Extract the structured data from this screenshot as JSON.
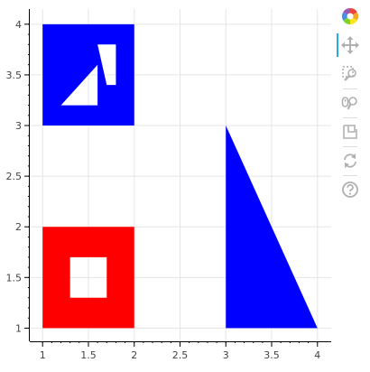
{
  "chart_data": {
    "type": "patches",
    "xlim": [
      0.86,
      4.15
    ],
    "ylim": [
      0.87,
      4.15
    ],
    "x_ticks": [
      "1",
      "1.5",
      "2",
      "2.5",
      "3",
      "3.5",
      "4"
    ],
    "y_ticks": [
      "1",
      "1.5",
      "2",
      "2.5",
      "3",
      "3.5",
      "4"
    ],
    "grid": true,
    "shapes": [
      {
        "name": "blue square with holes",
        "color": "#0000ff",
        "outer": [
          [
            1,
            3
          ],
          [
            2,
            3
          ],
          [
            2,
            4
          ],
          [
            1,
            4
          ]
        ],
        "holes": [
          [
            [
              1.2,
              3.2
            ],
            [
              1.6,
              3.2
            ],
            [
              1.6,
              3.6
            ]
          ],
          [
            [
              1.7,
              3.4
            ],
            [
              1.8,
              3.4
            ],
            [
              1.8,
              3.8
            ],
            [
              1.6,
              3.8
            ]
          ]
        ]
      },
      {
        "name": "red square with hole",
        "color": "#ff0000",
        "outer": [
          [
            1,
            1
          ],
          [
            2,
            1
          ],
          [
            2,
            2
          ],
          [
            1,
            2
          ]
        ],
        "holes": [
          [
            [
              1.3,
              1.3
            ],
            [
              1.7,
              1.3
            ],
            [
              1.7,
              1.7
            ],
            [
              1.3,
              1.7
            ]
          ]
        ]
      },
      {
        "name": "blue triangle",
        "color": "#0000ff",
        "outer": [
          [
            3,
            1
          ],
          [
            4,
            1
          ],
          [
            3,
            3
          ]
        ],
        "holes": []
      }
    ]
  },
  "toolbar": {
    "tools": [
      {
        "icon": "bokeh-logo-icon",
        "active": false
      },
      {
        "icon": "pan-icon",
        "active": true
      },
      {
        "icon": "box-zoom-icon",
        "active": false
      },
      {
        "icon": "wheel-zoom-icon",
        "active": false
      },
      {
        "icon": "save-icon",
        "active": false
      },
      {
        "icon": "reset-icon",
        "active": false
      },
      {
        "icon": "help-icon",
        "active": false
      }
    ]
  }
}
